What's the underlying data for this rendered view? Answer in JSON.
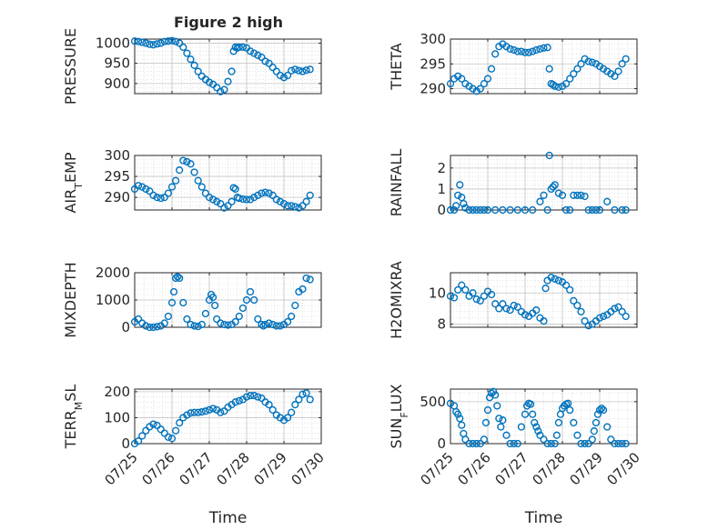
{
  "figure_title": "Figure 2 high",
  "colors": {
    "marker": "#0072BD",
    "axes": "#262626",
    "grid": "#d0d0d0"
  },
  "chart_data": [
    {
      "type": "scatter",
      "ylabel": "PRESSURE",
      "title": "Figure 2 high",
      "xlabel": "",
      "xlim": [
        0,
        5
      ],
      "ylim": [
        875,
        1010
      ],
      "yticks": [
        900,
        950,
        1000
      ],
      "ytick_labels": [
        "900",
        "950",
        "1000"
      ],
      "grid": "on",
      "x_tick_labels_visible": false,
      "x": [
        0.0,
        0.1,
        0.2,
        0.3,
        0.4,
        0.5,
        0.6,
        0.7,
        0.8,
        0.9,
        1.0,
        1.1,
        1.2,
        1.3,
        1.4,
        1.5,
        1.6,
        1.7,
        1.8,
        1.9,
        2.0,
        2.1,
        2.2,
        2.3,
        2.4,
        2.5,
        2.6,
        2.65,
        2.7,
        2.75,
        2.8,
        2.9,
        3.0,
        3.1,
        3.2,
        3.3,
        3.4,
        3.5,
        3.6,
        3.7,
        3.8,
        3.9,
        4.0,
        4.1,
        4.2,
        4.3,
        4.4,
        4.5,
        4.6,
        4.7
      ],
      "y": [
        1005,
        1004,
        1002,
        1000,
        997,
        996,
        998,
        1000,
        1004,
        1005,
        1006,
        1004,
        1000,
        990,
        975,
        960,
        945,
        930,
        918,
        910,
        903,
        898,
        890,
        880,
        885,
        905,
        930,
        980,
        990,
        988,
        990,
        990,
        988,
        980,
        975,
        970,
        965,
        955,
        950,
        940,
        930,
        920,
        915,
        920,
        932,
        935,
        932,
        930,
        933,
        935
      ]
    },
    {
      "type": "scatter",
      "ylabel": "THETA",
      "xlabel": "",
      "xlim": [
        0,
        5
      ],
      "ylim": [
        289,
        300
      ],
      "yticks": [
        290,
        295,
        300
      ],
      "ytick_labels": [
        "290",
        "295",
        "300"
      ],
      "grid": "on",
      "x_tick_labels_visible": false,
      "x": [
        0.0,
        0.1,
        0.2,
        0.3,
        0.4,
        0.5,
        0.6,
        0.7,
        0.8,
        0.9,
        1.0,
        1.1,
        1.2,
        1.3,
        1.4,
        1.5,
        1.6,
        1.7,
        1.8,
        1.9,
        2.0,
        2.1,
        2.2,
        2.3,
        2.4,
        2.5,
        2.6,
        2.65,
        2.7,
        2.75,
        2.8,
        2.9,
        3.0,
        3.1,
        3.2,
        3.3,
        3.4,
        3.5,
        3.6,
        3.7,
        3.8,
        3.9,
        4.0,
        4.1,
        4.2,
        4.3,
        4.4,
        4.5,
        4.6,
        4.7
      ],
      "y": [
        291,
        292,
        292.5,
        292,
        291,
        290.5,
        290,
        289.5,
        290,
        291,
        292,
        294,
        297,
        298.5,
        299,
        298.5,
        298,
        297.8,
        297.5,
        297.5,
        297.3,
        297.3,
        297.5,
        297.8,
        298,
        298.2,
        298.3,
        294,
        291,
        290.8,
        290.5,
        290.3,
        290.5,
        291,
        292,
        293,
        294,
        295,
        296,
        295.5,
        295.3,
        295,
        294.5,
        294,
        293.5,
        293,
        292.5,
        293.5,
        295,
        296
      ]
    },
    {
      "type": "scatter",
      "ylabel": "AIR_TEMP",
      "xlabel": "",
      "xlim": [
        0,
        5
      ],
      "ylim": [
        287,
        300
      ],
      "yticks": [
        290,
        295,
        300
      ],
      "ytick_labels": [
        "290",
        "295",
        "300"
      ],
      "grid": "on",
      "x_tick_labels_visible": false,
      "x": [
        0.0,
        0.1,
        0.2,
        0.3,
        0.4,
        0.5,
        0.6,
        0.7,
        0.8,
        0.9,
        1.0,
        1.1,
        1.2,
        1.3,
        1.4,
        1.5,
        1.6,
        1.7,
        1.8,
        1.9,
        2.0,
        2.1,
        2.2,
        2.3,
        2.4,
        2.5,
        2.6,
        2.65,
        2.7,
        2.75,
        2.8,
        2.9,
        3.0,
        3.1,
        3.2,
        3.3,
        3.4,
        3.5,
        3.6,
        3.7,
        3.8,
        3.9,
        4.0,
        4.1,
        4.2,
        4.3,
        4.4,
        4.5,
        4.6,
        4.7
      ],
      "y": [
        292,
        292.8,
        292.5,
        292,
        291.5,
        290.5,
        290,
        289.8,
        290,
        291,
        292.5,
        294,
        296.5,
        298.8,
        298.5,
        298,
        296,
        294,
        292.5,
        291,
        290,
        289.5,
        289,
        288.5,
        287.5,
        288,
        289,
        292.3,
        292,
        290,
        289.8,
        289.6,
        289.5,
        289.5,
        290,
        290.5,
        291,
        291.2,
        291,
        290.5,
        289.5,
        289,
        288.5,
        288,
        288,
        287.8,
        287.5,
        288,
        289,
        290.5
      ]
    },
    {
      "type": "scatter",
      "ylabel": "RAINFALL",
      "xlabel": "",
      "xlim": [
        0,
        5
      ],
      "ylim": [
        0,
        2.6
      ],
      "yticks": [
        0,
        1,
        2
      ],
      "ytick_labels": [
        "0",
        "1",
        "2"
      ],
      "grid": "on",
      "x_tick_labels_visible": false,
      "x": [
        0.0,
        0.1,
        0.15,
        0.2,
        0.25,
        0.3,
        0.35,
        0.4,
        0.5,
        0.6,
        0.7,
        0.8,
        0.9,
        1.0,
        1.2,
        1.4,
        1.6,
        1.8,
        2.0,
        2.2,
        2.4,
        2.5,
        2.6,
        2.65,
        2.7,
        2.75,
        2.8,
        2.9,
        3.0,
        3.1,
        3.2,
        3.3,
        3.4,
        3.5,
        3.6,
        3.7,
        3.8,
        3.9,
        4.0,
        4.2,
        4.4,
        4.6,
        4.7
      ],
      "y": [
        0,
        0,
        0.2,
        0.7,
        1.2,
        0.6,
        0.3,
        0.1,
        0,
        0,
        0,
        0,
        0,
        0,
        0,
        0,
        0,
        0,
        0,
        0,
        0.4,
        0.7,
        0,
        2.6,
        1.0,
        1.1,
        1.2,
        0.8,
        0.7,
        0,
        0,
        0.7,
        0.7,
        0.7,
        0.65,
        0,
        0,
        0,
        0,
        0.4,
        0,
        0,
        0
      ]
    },
    {
      "type": "scatter",
      "ylabel": "MIXDEPTH",
      "xlabel": "",
      "xlim": [
        0,
        5
      ],
      "ylim": [
        0,
        2000
      ],
      "yticks": [
        0,
        1000,
        2000
      ],
      "ytick_labels": [
        "0",
        "1000",
        "2000"
      ],
      "grid": "on",
      "x_tick_labels_visible": false,
      "x": [
        0.0,
        0.1,
        0.2,
        0.3,
        0.4,
        0.5,
        0.6,
        0.7,
        0.8,
        0.9,
        1.0,
        1.05,
        1.1,
        1.15,
        1.2,
        1.3,
        1.4,
        1.5,
        1.6,
        1.7,
        1.8,
        1.9,
        2.0,
        2.05,
        2.1,
        2.15,
        2.2,
        2.3,
        2.4,
        2.5,
        2.6,
        2.7,
        2.8,
        2.9,
        3.0,
        3.1,
        3.2,
        3.3,
        3.4,
        3.45,
        3.5,
        3.6,
        3.7,
        3.8,
        3.9,
        4.0,
        4.1,
        4.2,
        4.3,
        4.4,
        4.5,
        4.6,
        4.7
      ],
      "y": [
        200,
        300,
        150,
        50,
        0,
        0,
        20,
        50,
        150,
        400,
        900,
        1300,
        1800,
        1850,
        1800,
        900,
        300,
        100,
        50,
        30,
        100,
        500,
        1000,
        1200,
        1100,
        800,
        300,
        150,
        100,
        80,
        100,
        200,
        400,
        700,
        1000,
        1300,
        1000,
        300,
        100,
        50,
        100,
        150,
        100,
        50,
        50,
        100,
        200,
        400,
        800,
        1300,
        1400,
        1800,
        1750
      ]
    },
    {
      "type": "scatter",
      "ylabel": "H2OMIXRA",
      "xlabel": "",
      "xlim": [
        0,
        5
      ],
      "ylim": [
        7.8,
        11.3
      ],
      "yticks": [
        8,
        10
      ],
      "ytick_labels": [
        "8",
        "10"
      ],
      "grid": "on",
      "x_tick_labels_visible": false,
      "x": [
        0.0,
        0.1,
        0.2,
        0.3,
        0.4,
        0.5,
        0.6,
        0.7,
        0.8,
        0.9,
        1.0,
        1.1,
        1.2,
        1.3,
        1.4,
        1.5,
        1.6,
        1.7,
        1.8,
        1.9,
        2.0,
        2.1,
        2.2,
        2.3,
        2.4,
        2.5,
        2.55,
        2.6,
        2.7,
        2.8,
        2.9,
        3.0,
        3.1,
        3.2,
        3.3,
        3.4,
        3.5,
        3.6,
        3.7,
        3.8,
        3.9,
        4.0,
        4.1,
        4.2,
        4.3,
        4.4,
        4.5,
        4.6,
        4.7
      ],
      "y": [
        9.8,
        9.7,
        10.2,
        10.5,
        10.2,
        9.8,
        10.0,
        9.6,
        9.5,
        9.8,
        10.1,
        9.9,
        9.3,
        9.0,
        9.3,
        9.0,
        8.9,
        9.2,
        9.1,
        8.8,
        8.6,
        8.5,
        8.7,
        8.9,
        8.4,
        8.2,
        10.3,
        10.8,
        11.0,
        10.9,
        10.8,
        10.7,
        10.5,
        10.2,
        9.5,
        9.2,
        8.8,
        8.2,
        7.9,
        8.0,
        8.2,
        8.4,
        8.5,
        8.6,
        8.8,
        9.0,
        9.1,
        8.8,
        8.5
      ]
    },
    {
      "type": "scatter",
      "ylabel": "TERR_MSL",
      "xlabel": "Time",
      "xlim": [
        0,
        5
      ],
      "ylim": [
        0,
        210
      ],
      "yticks": [
        0,
        100,
        200
      ],
      "ytick_labels": [
        "0",
        "100",
        "200"
      ],
      "grid": "on",
      "xtick_labels": [
        "07/25",
        "07/26",
        "07/27",
        "07/28",
        "07/29",
        "07/30"
      ],
      "x": [
        0.0,
        0.1,
        0.2,
        0.3,
        0.4,
        0.5,
        0.6,
        0.7,
        0.8,
        0.9,
        1.0,
        1.1,
        1.2,
        1.3,
        1.4,
        1.5,
        1.6,
        1.7,
        1.8,
        1.9,
        2.0,
        2.1,
        2.2,
        2.3,
        2.4,
        2.5,
        2.6,
        2.7,
        2.8,
        2.9,
        3.0,
        3.1,
        3.2,
        3.3,
        3.4,
        3.5,
        3.6,
        3.7,
        3.8,
        3.9,
        4.0,
        4.1,
        4.2,
        4.3,
        4.4,
        4.5,
        4.6,
        4.7
      ],
      "y": [
        0,
        10,
        30,
        50,
        65,
        75,
        70,
        55,
        40,
        25,
        20,
        50,
        80,
        100,
        110,
        118,
        120,
        120,
        122,
        125,
        130,
        135,
        130,
        120,
        125,
        140,
        150,
        160,
        165,
        170,
        180,
        185,
        185,
        180,
        175,
        160,
        150,
        130,
        110,
        100,
        90,
        100,
        120,
        150,
        170,
        190,
        195,
        170
      ]
    },
    {
      "type": "scatter",
      "ylabel": "SUN_FLUX",
      "xlabel": "Time",
      "xlim": [
        0,
        5
      ],
      "ylim": [
        0,
        650
      ],
      "yticks": [
        0,
        500
      ],
      "ytick_labels": [
        "0",
        "500"
      ],
      "grid": "on",
      "xtick_labels": [
        "07/25",
        "07/26",
        "07/27",
        "07/28",
        "07/29",
        "07/30"
      ],
      "x": [
        0.0,
        0.1,
        0.15,
        0.2,
        0.25,
        0.3,
        0.35,
        0.4,
        0.5,
        0.6,
        0.7,
        0.8,
        0.9,
        0.95,
        1.0,
        1.05,
        1.1,
        1.15,
        1.2,
        1.25,
        1.3,
        1.35,
        1.4,
        1.5,
        1.6,
        1.7,
        1.8,
        1.9,
        2.0,
        2.05,
        2.1,
        2.15,
        2.2,
        2.25,
        2.3,
        2.35,
        2.4,
        2.5,
        2.6,
        2.7,
        2.8,
        2.85,
        2.9,
        2.95,
        3.0,
        3.05,
        3.1,
        3.15,
        3.2,
        3.3,
        3.4,
        3.5,
        3.6,
        3.7,
        3.8,
        3.85,
        3.9,
        3.95,
        4.0,
        4.05,
        4.1,
        4.2,
        4.3,
        4.4,
        4.5,
        4.6,
        4.7
      ],
      "y": [
        480,
        450,
        380,
        350,
        300,
        220,
        120,
        50,
        0,
        0,
        0,
        0,
        50,
        250,
        400,
        550,
        600,
        620,
        580,
        450,
        300,
        200,
        280,
        100,
        0,
        0,
        0,
        200,
        350,
        450,
        480,
        470,
        350,
        250,
        200,
        150,
        100,
        50,
        0,
        0,
        0,
        100,
        250,
        350,
        420,
        450,
        470,
        480,
        400,
        250,
        100,
        0,
        0,
        0,
        50,
        150,
        250,
        350,
        400,
        420,
        400,
        200,
        50,
        0,
        0,
        0,
        0
      ]
    }
  ]
}
